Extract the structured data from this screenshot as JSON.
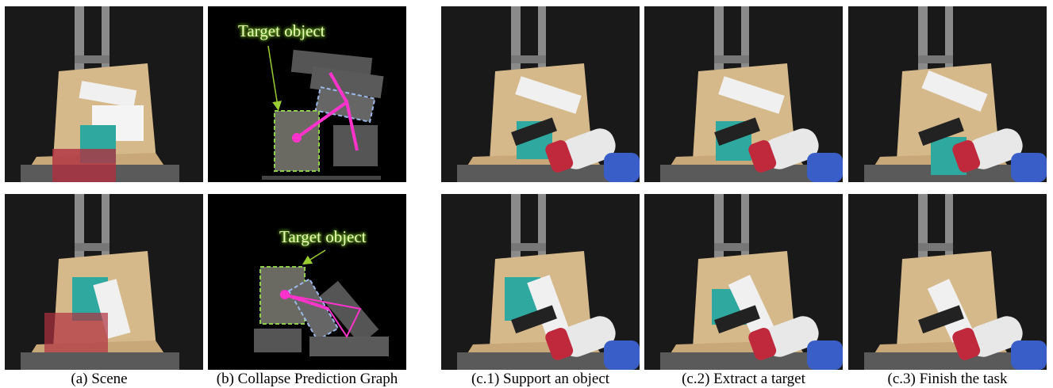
{
  "annotations": [
    "Target object",
    "Target object"
  ],
  "captions": [
    "(a) Scene",
    "(b) Collapse Prediction Graph",
    "(c.1) Support an object",
    "(c.2) Extract a target",
    "(c.3) Finish the task"
  ]
}
